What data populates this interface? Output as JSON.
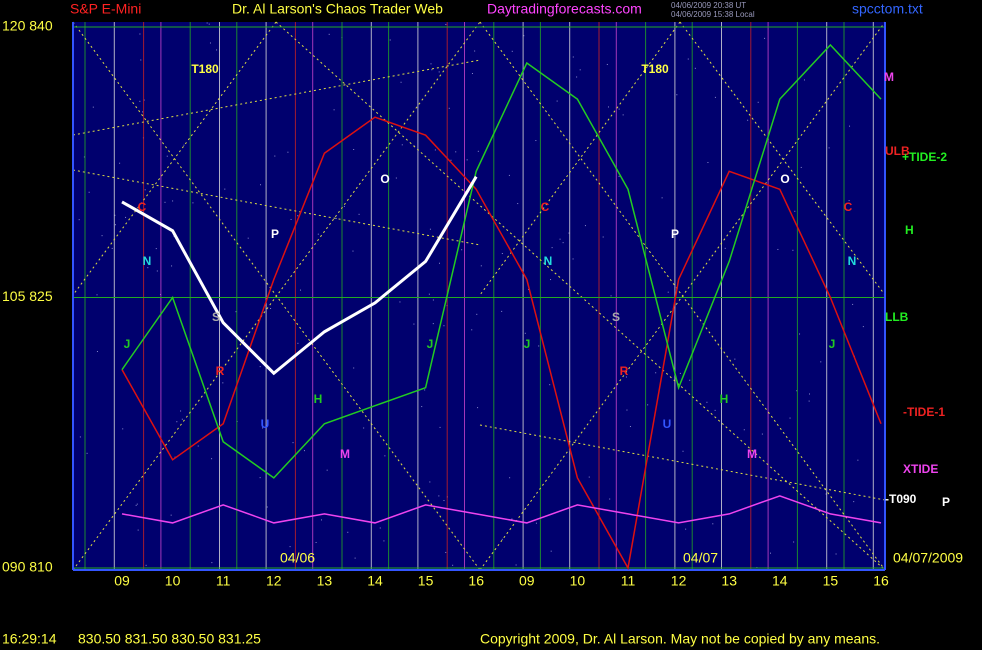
{
  "chart_data": {
    "type": "line",
    "title": "S&P E-Mini",
    "subtitle": "Dr. Al Larson's Chaos Trader Web",
    "site": "Daytradingforecasts.com",
    "stamp_ut": "04/06/2009 20:38 UT",
    "stamp_local": "04/06/2009 15:38 Local",
    "file": "spcctom.txt",
    "categories": [
      "09",
      "10",
      "11",
      "12",
      "13",
      "14",
      "15",
      "16",
      "09",
      "10",
      "11",
      "12",
      "13",
      "14",
      "15",
      "16"
    ],
    "values": [
      830.3,
      828.7,
      823.6,
      820.8,
      823.1,
      824.7,
      827,
      831.7,
      null,
      null,
      null,
      null,
      null,
      null,
      null,
      null
    ],
    "color": "#ffffff",
    "series": [
      {
        "name": "-TIDE-1",
        "color": "#dd1111",
        "values": [
          821,
          816,
          818,
          826,
          833,
          835,
          834,
          831,
          826,
          815,
          810,
          826,
          832,
          831,
          825,
          818
        ]
      },
      {
        "name": "+TIDE-2",
        "color": "#22cc22",
        "values": [
          821,
          825,
          817,
          815,
          818,
          819,
          820,
          832,
          838,
          836,
          831,
          820,
          827,
          836,
          839,
          836
        ]
      },
      {
        "name": "XTIDE",
        "color": "#ee44ee",
        "values": [
          813,
          812.5,
          813.5,
          812.5,
          813,
          812.5,
          813.5,
          813,
          812.5,
          813.5,
          813,
          812.5,
          813,
          814,
          813,
          812.5
        ]
      }
    ],
    "ylim": [
      810,
      840
    ],
    "yticks": [
      {
        "value": 810,
        "label": "090  810"
      },
      {
        "value": 825,
        "label": "105  825"
      },
      {
        "value": 840,
        "label": "120  840"
      }
    ],
    "grid": true,
    "dates": [
      "04/06",
      "04/07",
      "04/07/2009"
    ],
    "annotations": [
      {
        "text": "T180",
        "color": "#ffff44"
      },
      {
        "text": "T180",
        "color": "#ffff44"
      },
      {
        "text": "O",
        "color": "#ffffff"
      },
      {
        "text": "O",
        "color": "#ffffff"
      },
      {
        "text": "P",
        "color": "#ffffff"
      },
      {
        "text": "P",
        "color": "#ffffff"
      },
      {
        "text": "C",
        "color": "#ee2222"
      },
      {
        "text": "C",
        "color": "#ee2222"
      },
      {
        "text": "C",
        "color": "#ee2222"
      },
      {
        "text": "N",
        "color": "#22dddd"
      },
      {
        "text": "N",
        "color": "#22dddd"
      },
      {
        "text": "N",
        "color": "#22dddd"
      },
      {
        "text": "S",
        "color": "#aaaaaa"
      },
      {
        "text": "S",
        "color": "#aaaaaa"
      },
      {
        "text": "R",
        "color": "#ee2222"
      },
      {
        "text": "R",
        "color": "#ee2222"
      },
      {
        "text": "J",
        "color": "#22cc22"
      },
      {
        "text": "J",
        "color": "#22cc22"
      },
      {
        "text": "J",
        "color": "#22cc22"
      },
      {
        "text": "J",
        "color": "#22cc22"
      },
      {
        "text": "H",
        "color": "#22cc22"
      },
      {
        "text": "H",
        "color": "#22cc22"
      },
      {
        "text": "M",
        "color": "#ee44ee"
      },
      {
        "text": "M",
        "color": "#ee44ee"
      },
      {
        "text": "U",
        "color": "#3355ff"
      },
      {
        "text": "U",
        "color": "#3355ff"
      }
    ],
    "right_labels": [
      {
        "text": "M",
        "color": "#ee44ee"
      },
      {
        "text": "ULB",
        "color": "#ee2222"
      },
      {
        "text": "+TIDE-2",
        "color": "#22ee22"
      },
      {
        "text": "H",
        "color": "#22ee22"
      },
      {
        "text": "LLB",
        "color": "#22ee22"
      },
      {
        "text": "-TIDE-1",
        "color": "#ee2222"
      },
      {
        "text": "XTIDE",
        "color": "#ee44ee"
      },
      {
        "text": "-T090",
        "color": "#ffffff"
      },
      {
        "text": "P",
        "color": "#ffffff"
      }
    ],
    "footer_time": "16:29:14",
    "footer_prices": "830.50 831.50 830.50 831.25",
    "copyright": "Copyright 2009, Dr. Al Larson. May not be copied by any means."
  }
}
